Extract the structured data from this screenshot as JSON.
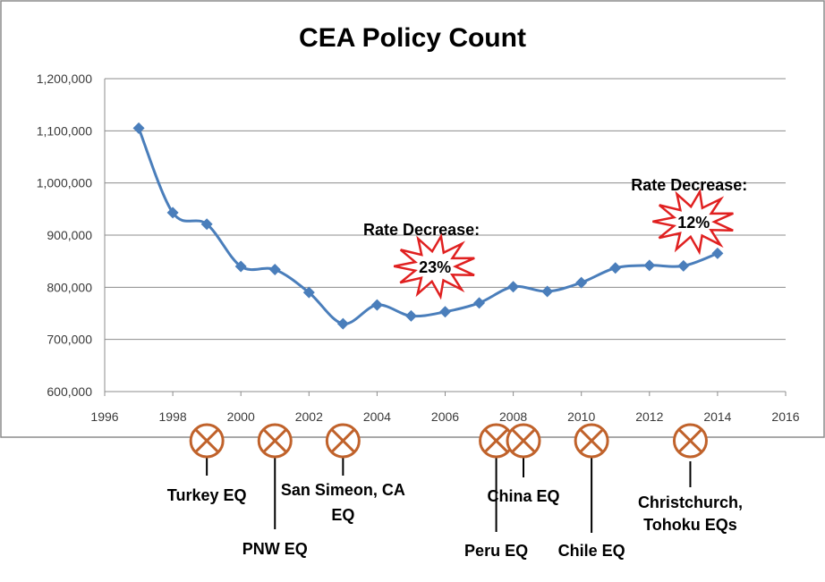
{
  "chart_data": {
    "type": "line",
    "title": "CEA Policy Count",
    "x": [
      1997,
      1998,
      1999,
      2000,
      2001,
      2002,
      2003,
      2004,
      2005,
      2006,
      2007,
      2008,
      2009,
      2010,
      2011,
      2012,
      2013,
      2014
    ],
    "series": [
      {
        "values": [
          1105000,
          943000,
          921000,
          840000,
          834000,
          790000,
          730000,
          766000,
          745000,
          753000,
          770000,
          801000,
          792000,
          809000,
          837000,
          842000,
          841000,
          865000
        ]
      }
    ],
    "xlim": [
      1996,
      2016
    ],
    "ylim": [
      600000,
      1200000
    ],
    "x_ticks": [
      "1996",
      "1998",
      "2000",
      "2002",
      "2004",
      "2006",
      "2008",
      "2010",
      "2012",
      "2014",
      "2016"
    ],
    "y_ticks": [
      "600,000",
      "700,000",
      "800,000",
      "900,000",
      "1,000,000",
      "1,100,000",
      "1,200,000"
    ],
    "grid": "horizontal",
    "line_color": "#4a7ebb",
    "marker": "diamond",
    "annotations": [
      {
        "label": "Rate Decrease:",
        "burst_text": "23%",
        "x": 2005.7
      },
      {
        "label": "Rate Decrease:",
        "burst_text": "12%",
        "x": 2013.3
      }
    ]
  },
  "earthquakes": [
    {
      "label_lines": [
        "Turkey EQ"
      ],
      "year": 1999
    },
    {
      "label_lines": [
        "PNW EQ"
      ],
      "year": 2001
    },
    {
      "label_lines": [
        "San Simeon, CA",
        "EQ"
      ],
      "year": 2003
    },
    {
      "label_lines": [
        "Peru EQ"
      ],
      "year": 2007.5
    },
    {
      "label_lines": [
        "China EQ"
      ],
      "year": 2008.3
    },
    {
      "label_lines": [
        "Chile EQ"
      ],
      "year": 2010.3
    },
    {
      "label_lines": [
        "Christchurch,",
        "Tohoku EQs"
      ],
      "year": 2013.2
    }
  ],
  "colors": {
    "eq_marker": "#c0622b",
    "burst_fill": "#ffffff",
    "burst_stroke": "#e02020",
    "grid": "#8c8c8c",
    "frame": "#8c8c8c"
  }
}
